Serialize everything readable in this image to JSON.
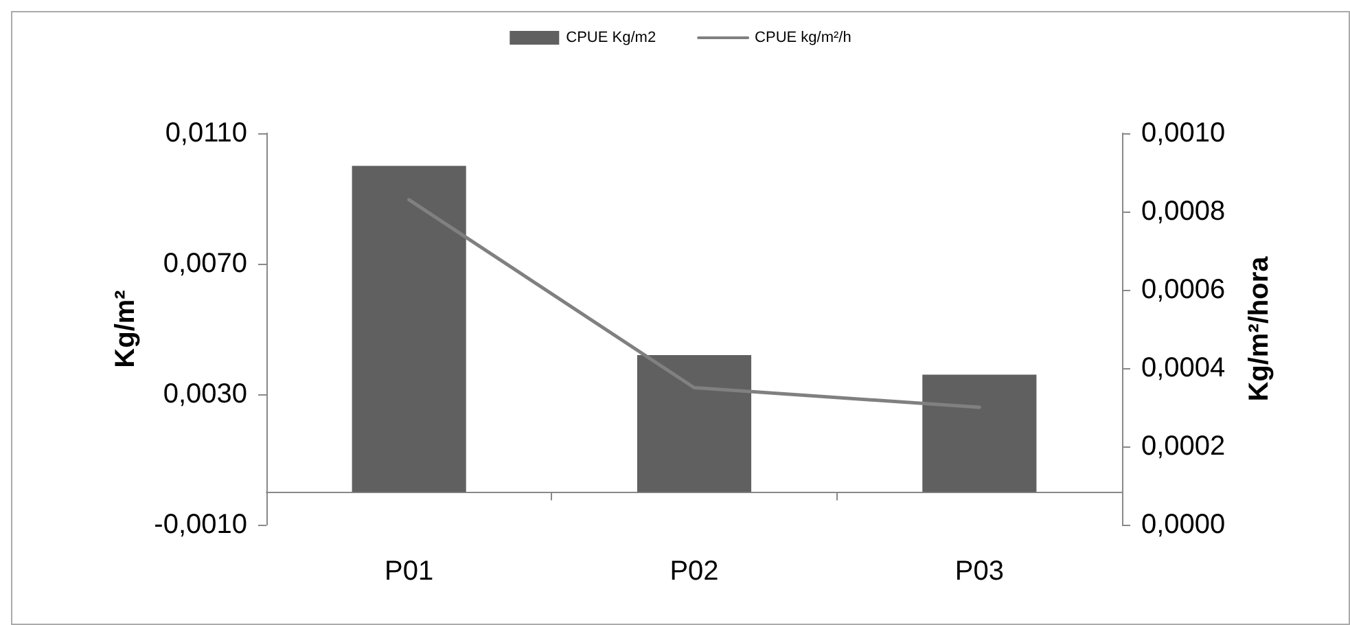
{
  "chart_data": {
    "type": "bar",
    "categories": [
      "P01",
      "P02",
      "P03"
    ],
    "series": [
      {
        "name": "CPUE Kg/m2",
        "color": "#606060",
        "values": [
          0.01,
          0.0042,
          0.0036
        ]
      },
      {
        "name": "CPUE kg/m²/h",
        "type": "line",
        "axis": "y2",
        "color": "#808080",
        "values": [
          0.00083,
          0.00035,
          0.0003
        ]
      }
    ],
    "ylabel": "Kg/m²",
    "y2label": "Kg/m²/hora",
    "ylim": [
      -0.001,
      0.011
    ],
    "yticks": [
      {
        "value": -0.001,
        "label": "-0,0010"
      },
      {
        "value": 0.003,
        "label": "0,0030"
      },
      {
        "value": 0.007,
        "label": "0,0070"
      },
      {
        "value": 0.011,
        "label": "0,0110"
      }
    ],
    "y2lim": [
      0,
      0.001
    ],
    "y2ticks": [
      {
        "value": 0,
        "label": "0,0000"
      },
      {
        "value": 0.0002,
        "label": "0,0002"
      },
      {
        "value": 0.0004,
        "label": "0,0004"
      },
      {
        "value": 0.0006,
        "label": "0,0006"
      },
      {
        "value": 0.0008,
        "label": "0,0008"
      },
      {
        "value": 0.001,
        "label": "0,0010"
      }
    ],
    "legend": "top",
    "marker": "none",
    "grid": false
  }
}
